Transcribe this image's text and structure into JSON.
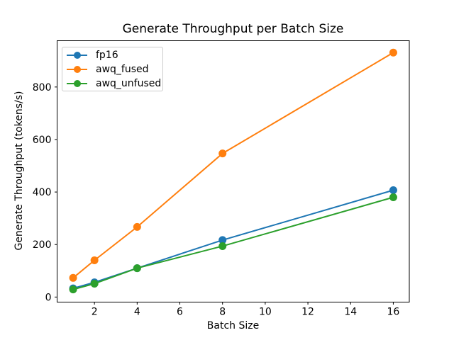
{
  "title": "Generate Throughput per Batch Size",
  "chart_data": {
    "type": "line",
    "title": "Generate Throughput per Batch Size",
    "xlabel": "Batch Size",
    "ylabel": "Generate Throughput (tokens/s)",
    "x": [
      1,
      2,
      4,
      8,
      16
    ],
    "series": [
      {
        "name": "fp16",
        "color": "#1f77b4",
        "values": [
          33,
          56,
          110,
          217,
          407
        ]
      },
      {
        "name": "awq_fused",
        "color": "#ff7f0e",
        "values": [
          73,
          140,
          267,
          547,
          931
        ]
      },
      {
        "name": "awq_unfused",
        "color": "#2ca02c",
        "values": [
          29,
          51,
          110,
          194,
          380
        ]
      }
    ],
    "xlim": [
      0.25,
      16.75
    ],
    "ylim": [
      -19.25,
      976.25
    ],
    "xticks": [
      2,
      4,
      6,
      8,
      10,
      12,
      14,
      16
    ],
    "yticks": [
      0,
      200,
      400,
      600,
      800
    ],
    "grid": false,
    "legend_position": "upper left",
    "marker": "o",
    "line_width": 2,
    "marker_radius": 5.5,
    "background": "#ffffff",
    "axis_color": "#000000"
  }
}
